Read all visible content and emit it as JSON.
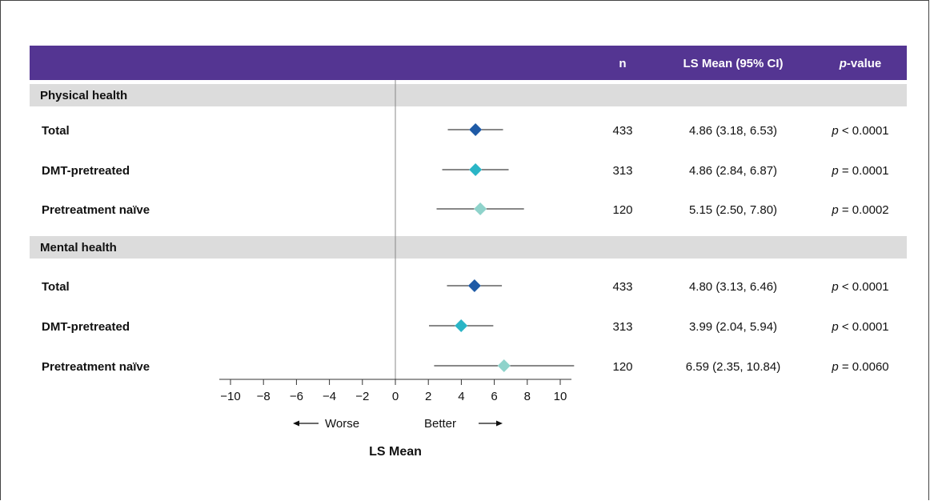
{
  "chart_data": {
    "type": "forest",
    "xlabel": "LS Mean",
    "xlim": [
      -10,
      10
    ],
    "x_ticks": [
      -10,
      -8,
      -6,
      -4,
      -2,
      0,
      2,
      4,
      6,
      8,
      10
    ],
    "direction_labels": {
      "left": "Worse",
      "right": "Better"
    },
    "columns": {
      "n": "n",
      "ls_mean": "LS Mean (95% CI)",
      "p_prefix": "p",
      "p_suffix": "-value"
    },
    "colors": {
      "header_bg": "#543592",
      "section_bg": "#dcdcdc",
      "total": "#1e5aa6",
      "dmt": "#2ab5c6",
      "naive": "#8fd3cb"
    },
    "sections": [
      {
        "name": "Physical health",
        "rows": [
          {
            "label": "Total",
            "group": "total",
            "n": "433",
            "mean": 4.86,
            "lower": 3.18,
            "upper": 6.53,
            "ci_text": "4.86 (3.18, 6.53)",
            "p_var": "p",
            "p_text": " < 0.0001"
          },
          {
            "label": "DMT-pretreated",
            "group": "dmt",
            "n": "313",
            "mean": 4.86,
            "lower": 2.84,
            "upper": 6.87,
            "ci_text": "4.86 (2.84, 6.87)",
            "p_var": "p",
            "p_text": " = 0.0001"
          },
          {
            "label": "Pretreatment naïve",
            "group": "naive",
            "n": "120",
            "mean": 5.15,
            "lower": 2.5,
            "upper": 7.8,
            "ci_text": "5.15 (2.50, 7.80)",
            "p_var": "p",
            "p_text": " = 0.0002"
          }
        ]
      },
      {
        "name": "Mental health",
        "rows": [
          {
            "label": "Total",
            "group": "total",
            "n": "433",
            "mean": 4.8,
            "lower": 3.13,
            "upper": 6.46,
            "ci_text": "4.80 (3.13, 6.46)",
            "p_var": "p",
            "p_text": " < 0.0001"
          },
          {
            "label": "DMT-pretreated",
            "group": "dmt",
            "n": "313",
            "mean": 3.99,
            "lower": 2.04,
            "upper": 5.94,
            "ci_text": "3.99 (2.04, 5.94)",
            "p_var": "p",
            "p_text": " < 0.0001"
          },
          {
            "label": "Pretreatment naïve",
            "group": "naive",
            "n": "120",
            "mean": 6.59,
            "lower": 2.35,
            "upper": 10.84,
            "ci_text": "6.59 (2.35, 10.84)",
            "p_var": "p",
            "p_text": " = 0.0060"
          }
        ]
      }
    ]
  }
}
